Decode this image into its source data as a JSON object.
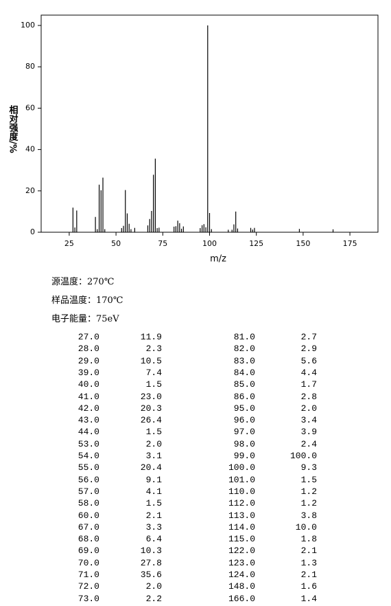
{
  "chart_data": {
    "type": "bar",
    "xlabel": "m/z",
    "ylabel": "相对强度/%",
    "x": [
      27,
      28,
      29,
      39,
      40,
      41,
      42,
      43,
      44,
      53,
      54,
      55,
      56,
      57,
      58,
      60,
      67,
      68,
      69,
      70,
      71,
      72,
      73,
      81,
      82,
      83,
      84,
      85,
      86,
      95,
      96,
      97,
      98,
      99,
      100,
      101,
      110,
      112,
      113,
      114,
      115,
      122,
      123,
      124,
      148,
      166
    ],
    "values": [
      11.9,
      2.3,
      10.5,
      7.4,
      1.5,
      23.0,
      20.3,
      26.4,
      1.5,
      2.0,
      3.1,
      20.4,
      9.1,
      4.1,
      1.5,
      2.1,
      3.3,
      6.4,
      10.3,
      27.8,
      35.6,
      2.0,
      2.2,
      2.7,
      2.9,
      5.6,
      4.4,
      1.7,
      2.8,
      2.0,
      3.4,
      3.9,
      2.4,
      100.0,
      9.3,
      1.5,
      1.2,
      1.2,
      3.8,
      10.0,
      1.8,
      2.1,
      1.3,
      2.1,
      1.6,
      1.4
    ],
    "color": "#000000",
    "xlim": [
      10,
      190
    ],
    "xticks": [
      25,
      50,
      75,
      100,
      125,
      150,
      175
    ],
    "ylim": [
      0,
      105
    ],
    "yticks": [
      0,
      20,
      40,
      60,
      80,
      100
    ]
  },
  "conditions": [
    "源温度：270℃",
    "样品温度：170℃",
    "电子能量：75eV"
  ],
  "table": {
    "rows": [
      [
        "27.0",
        "11.9",
        "81.0",
        "2.7"
      ],
      [
        "28.0",
        "2.3",
        "82.0",
        "2.9"
      ],
      [
        "29.0",
        "10.5",
        "83.0",
        "5.6"
      ],
      [
        "39.0",
        "7.4",
        "84.0",
        "4.4"
      ],
      [
        "40.0",
        "1.5",
        "85.0",
        "1.7"
      ],
      [
        "41.0",
        "23.0",
        "86.0",
        "2.8"
      ],
      [
        "42.0",
        "20.3",
        "95.0",
        "2.0"
      ],
      [
        "43.0",
        "26.4",
        "96.0",
        "3.4"
      ],
      [
        "44.0",
        "1.5",
        "97.0",
        "3.9"
      ],
      [
        "53.0",
        "2.0",
        "98.0",
        "2.4"
      ],
      [
        "54.0",
        "3.1",
        "99.0",
        "100.0"
      ],
      [
        "55.0",
        "20.4",
        "100.0",
        "9.3"
      ],
      [
        "56.0",
        "9.1",
        "101.0",
        "1.5"
      ],
      [
        "57.0",
        "4.1",
        "110.0",
        "1.2"
      ],
      [
        "58.0",
        "1.5",
        "112.0",
        "1.2"
      ],
      [
        "60.0",
        "2.1",
        "113.0",
        "3.8"
      ],
      [
        "67.0",
        "3.3",
        "114.0",
        "10.0"
      ],
      [
        "68.0",
        "6.4",
        "115.0",
        "1.8"
      ],
      [
        "69.0",
        "10.3",
        "122.0",
        "2.1"
      ],
      [
        "70.0",
        "27.8",
        "123.0",
        "1.3"
      ],
      [
        "71.0",
        "35.6",
        "124.0",
        "2.1"
      ],
      [
        "72.0",
        "2.0",
        "148.0",
        "1.6"
      ],
      [
        "73.0",
        "2.2",
        "166.0",
        "1.4"
      ]
    ]
  }
}
